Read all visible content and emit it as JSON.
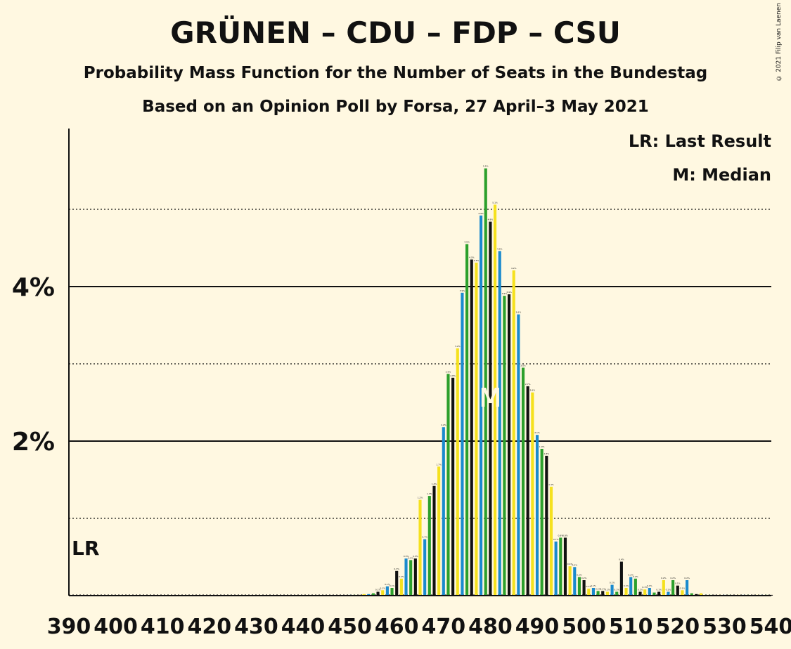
{
  "copyright": "© 2021 Filip van Laenen",
  "chart_data": {
    "type": "bar",
    "title": "GRÜNEN – CDU – FDP – CSU",
    "subtitle": "Probability Mass Function for the Number of Seats in the Bundestag",
    "subtitle2": "Based on an Opinion Poll by Forsa, 27 April–3 May 2021",
    "xlabel": "",
    "ylabel": "",
    "xlim": [
      390,
      540
    ],
    "ylim": [
      0,
      6
    ],
    "x_ticks": [
      390,
      400,
      410,
      420,
      430,
      440,
      450,
      460,
      470,
      480,
      490,
      500,
      510,
      520,
      530,
      540
    ],
    "y_ticks_labeled": [
      {
        "value": 2,
        "label": "2%"
      },
      {
        "value": 4,
        "label": "4%"
      }
    ],
    "y_gridlines_dotted": [
      1,
      3,
      5
    ],
    "legend_position": "top-right",
    "legend": [
      "LR: Last Result",
      "M: Median"
    ],
    "last_result": {
      "seats": 390,
      "label": "LR"
    },
    "median": {
      "seats": 480,
      "label": "M"
    },
    "bar_colors": [
      "#1a8ace",
      "#2ca02c",
      "#111111",
      "#f5e11e"
    ],
    "x": [
      450,
      451,
      452,
      453,
      454,
      455,
      456,
      457,
      458,
      459,
      460,
      461,
      462,
      463,
      464,
      465,
      466,
      467,
      468,
      469,
      470,
      471,
      472,
      473,
      474,
      475,
      476,
      477,
      478,
      479,
      480,
      481,
      482,
      483,
      484,
      485,
      486,
      487,
      488,
      489,
      490,
      491,
      492,
      493,
      494,
      495,
      496,
      497,
      498,
      499,
      500,
      501,
      502,
      503,
      504,
      505,
      506,
      507,
      508,
      509,
      510,
      511,
      512,
      513,
      514,
      515,
      516,
      517,
      518,
      519,
      520,
      521,
      522,
      523,
      524,
      525,
      526,
      527,
      528,
      529,
      530,
      531,
      532,
      533,
      534,
      535,
      536,
      537,
      538,
      539,
      540
    ],
    "values": [
      0.01,
      0.01,
      0.01,
      0.02,
      0.02,
      0.03,
      0.05,
      0.07,
      0.12,
      0.1,
      0.32,
      0.22,
      0.48,
      0.46,
      0.48,
      1.24,
      0.73,
      1.29,
      1.42,
      1.67,
      2.18,
      2.87,
      2.82,
      3.2,
      3.92,
      4.55,
      4.35,
      4.31,
      4.92,
      5.53,
      4.84,
      5.06,
      4.46,
      3.88,
      3.9,
      4.21,
      3.64,
      2.95,
      2.71,
      2.63,
      2.08,
      1.9,
      1.81,
      1.41,
      0.7,
      0.75,
      0.75,
      0.38,
      0.37,
      0.24,
      0.2,
      0.09,
      0.1,
      0.06,
      0.06,
      0.05,
      0.14,
      0.05,
      0.44,
      0.1,
      0.24,
      0.22,
      0.05,
      0.08,
      0.1,
      0.04,
      0.05,
      0.2,
      0.05,
      0.2,
      0.13,
      0.07,
      0.2,
      0.03,
      0.02,
      0.03,
      0.01,
      0.01,
      0.01,
      0.01,
      0.01,
      0.01,
      0.01,
      0.01,
      0.01,
      0.01,
      0.01,
      0.01,
      0.01,
      0.01,
      0.01
    ]
  }
}
